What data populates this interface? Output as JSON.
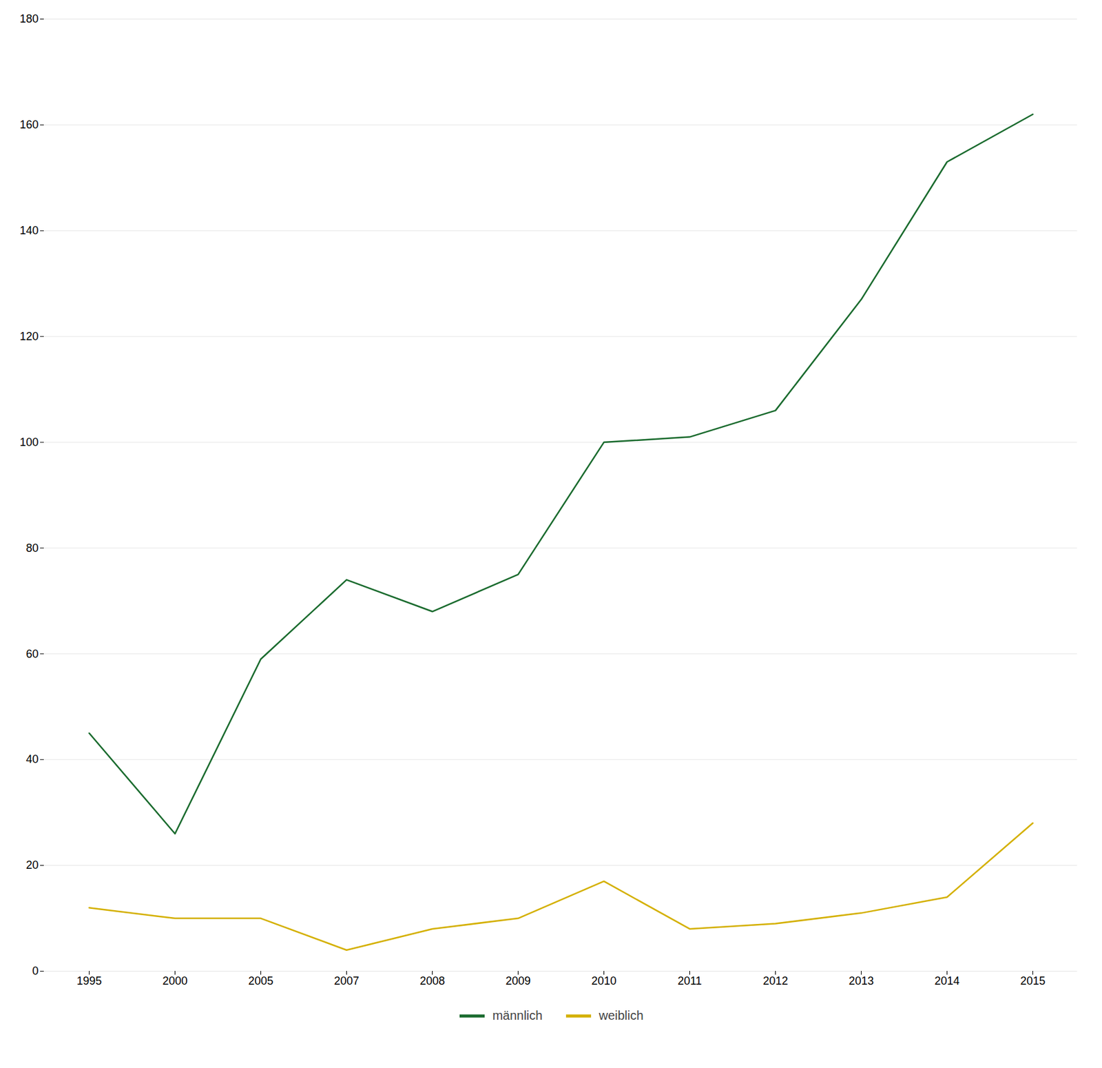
{
  "chart_data": {
    "type": "line",
    "categories": [
      "1995",
      "2000",
      "2005",
      "2007",
      "2008",
      "2009",
      "2010",
      "2011",
      "2012",
      "2013",
      "2014",
      "2015"
    ],
    "series": [
      {
        "name": "männlich",
        "color": "#1a6b2e",
        "values": [
          45,
          26,
          59,
          74,
          68,
          75,
          100,
          101,
          106,
          127,
          153,
          162
        ]
      },
      {
        "name": "weiblich",
        "color": "#d4b000",
        "values": [
          12,
          10,
          10,
          4,
          8,
          10,
          17,
          8,
          9,
          11,
          14,
          28
        ]
      }
    ],
    "ylim": [
      0,
      180
    ],
    "yticks": [
      0,
      20,
      40,
      60,
      80,
      100,
      120,
      140,
      160,
      180
    ],
    "grid": "y",
    "legend": "bottom"
  }
}
